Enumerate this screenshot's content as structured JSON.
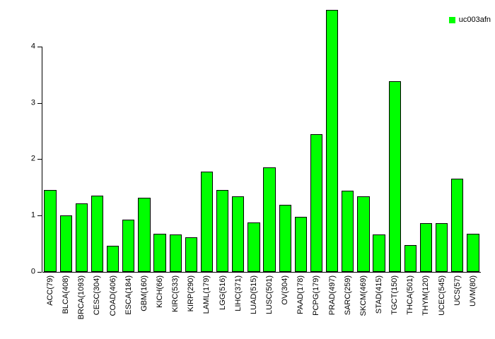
{
  "chart_data": {
    "type": "bar",
    "title": "",
    "xlabel": "",
    "ylabel": "",
    "grid": false,
    "ylim": [
      0,
      4.7
    ],
    "yticks": [
      0,
      1,
      2,
      3,
      4
    ],
    "bar_color": "#00FF00",
    "bar_border_color": "#000000",
    "axis_color": "#000000",
    "legend": {
      "label": "uc003afn",
      "color": "#00FF00",
      "position": "top-right",
      "swatch_icon": "legend-square-swatch"
    },
    "categories": [
      "ACC(79)",
      "BLCA(408)",
      "BRCA(1093)",
      "CESC(304)",
      "COAD(406)",
      "ESCA(184)",
      "GBM(160)",
      "KICH(66)",
      "KIRC(533)",
      "KIRP(290)",
      "LAML(179)",
      "LGG(516)",
      "LIHC(371)",
      "LUAD(515)",
      "LUSC(501)",
      "OV(304)",
      "PAAD(178)",
      "PCPG(179)",
      "PRAD(497)",
      "SARC(259)",
      "SKCM(469)",
      "STAD(415)",
      "TGCT(150)",
      "THCA(501)",
      "THYM(120)",
      "UCEC(545)",
      "UCS(57)",
      "UVM(80)"
    ],
    "values": [
      1.46,
      1.0,
      1.21,
      1.35,
      0.46,
      0.93,
      1.31,
      0.68,
      0.66,
      0.61,
      1.78,
      1.45,
      1.34,
      0.88,
      1.85,
      1.19,
      0.98,
      2.44,
      4.65,
      1.44,
      1.34,
      0.66,
      3.38,
      0.48,
      0.86,
      0.86,
      1.66,
      0.68
    ]
  }
}
